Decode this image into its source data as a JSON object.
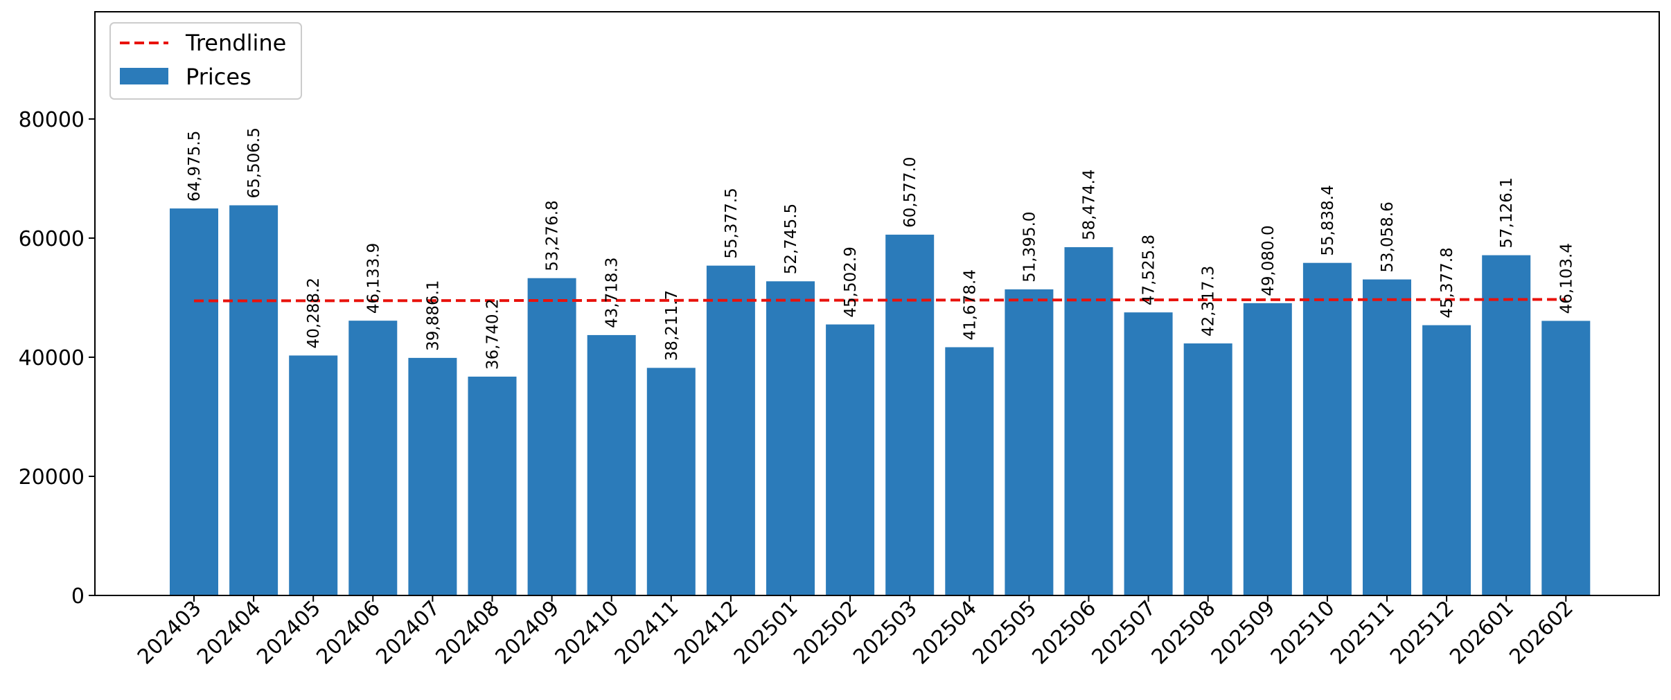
{
  "chart_data": {
    "type": "bar",
    "categories": [
      "202403",
      "202404",
      "202405",
      "202406",
      "202407",
      "202408",
      "202409",
      "202410",
      "202411",
      "202412",
      "202501",
      "202502",
      "202503",
      "202504",
      "202505",
      "202506",
      "202507",
      "202508",
      "202509",
      "202510",
      "202511",
      "202512",
      "202601",
      "202602"
    ],
    "series": [
      {
        "name": "Prices",
        "values": [
          64975.5,
          65506.5,
          40288.2,
          46133.9,
          39886.1,
          36740.2,
          53276.8,
          43718.3,
          38211.7,
          55377.5,
          52745.5,
          45502.9,
          60577.0,
          41678.4,
          51395.0,
          58474.4,
          47525.8,
          42317.3,
          49080.0,
          55838.4,
          53058.6,
          45377.8,
          57126.1,
          46103.4
        ],
        "labels": [
          "64,975.5",
          "65,506.5",
          "40,288.2",
          "46,133.9",
          "39,886.1",
          "36,740.2",
          "53,276.8",
          "43,718.3",
          "38,211.7",
          "55,377.5",
          "52,745.5",
          "45,502.9",
          "60,577.0",
          "41,678.4",
          "51,395.0",
          "58,474.4",
          "47,525.8",
          "42,317.3",
          "49,080.0",
          "55,838.4",
          "53,058.6",
          "45,377.8",
          "57,126.1",
          "46,103.4"
        ],
        "color": "#2b7bba"
      },
      {
        "name": "Trendline",
        "style": "dashed",
        "start": 49460,
        "end": 49700,
        "color": "#e8120c"
      }
    ],
    "yticks": [
      "0",
      "20000",
      "40000",
      "60000",
      "80000"
    ],
    "ytick_values": [
      0,
      20000,
      40000,
      60000,
      80000
    ],
    "ylim": [
      0,
      98000
    ],
    "legend_position": "upper-left",
    "grid": false
  }
}
